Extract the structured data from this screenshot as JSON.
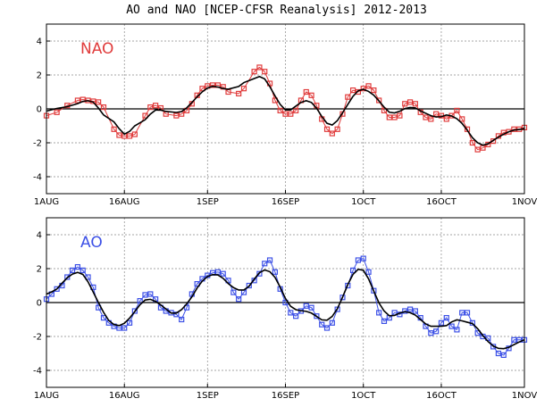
{
  "title": "AO and NAO [NCEP-CFSR Reanalysis] 2012-2013",
  "chart_data": [
    {
      "type": "line",
      "panel_label": "NAO",
      "color": "#e03c3c",
      "ylim": [
        -5,
        5
      ],
      "yticks": [
        -4,
        -2,
        0,
        2,
        4
      ],
      "grid": true,
      "x_tick_labels": [
        "1AUG",
        "16AUG",
        "1SEP",
        "16SEP",
        "1OCT",
        "16OCT",
        "1NOV"
      ],
      "x_tick_days": [
        0,
        15,
        31,
        46,
        61,
        76,
        92
      ],
      "x_range_days": [
        0,
        92
      ],
      "series": [
        {
          "x_days": [
            0,
            2,
            4,
            6,
            7,
            8,
            9,
            10,
            11,
            13,
            14,
            15,
            16,
            17,
            19,
            20,
            21,
            22,
            23,
            25,
            26,
            27,
            28,
            29,
            30,
            31,
            32,
            33,
            34,
            35,
            37,
            38,
            40,
            41,
            42,
            43,
            44,
            45,
            46,
            47,
            48,
            49,
            50,
            51,
            52,
            53,
            54,
            55,
            56,
            57,
            58,
            59,
            60,
            61,
            62,
            63,
            64,
            65,
            66,
            67,
            68,
            69,
            70,
            71,
            72,
            73,
            74,
            75,
            76,
            77,
            78,
            79,
            80,
            81,
            82,
            83,
            84,
            85,
            86,
            87,
            88,
            89,
            90,
            91,
            92
          ],
          "values": [
            -0.4,
            -0.2,
            0.2,
            0.5,
            0.55,
            0.5,
            0.45,
            0.4,
            0.1,
            -1.2,
            -1.55,
            -1.6,
            -1.6,
            -1.5,
            -0.4,
            0.1,
            0.2,
            0.05,
            -0.3,
            -0.4,
            -0.3,
            -0.1,
            0.3,
            0.8,
            1.2,
            1.35,
            1.4,
            1.4,
            1.3,
            1.0,
            0.9,
            1.2,
            2.2,
            2.45,
            2.2,
            1.5,
            0.5,
            -0.1,
            -0.3,
            -0.3,
            -0.1,
            0.5,
            1.0,
            0.8,
            0.2,
            -0.6,
            -1.2,
            -1.45,
            -1.2,
            -0.3,
            0.7,
            1.1,
            1.0,
            1.2,
            1.35,
            1.1,
            0.5,
            -0.1,
            -0.5,
            -0.5,
            -0.4,
            0.3,
            0.4,
            0.3,
            -0.2,
            -0.5,
            -0.6,
            -0.3,
            -0.4,
            -0.6,
            -0.4,
            -0.1,
            -0.6,
            -1.2,
            -2.0,
            -2.4,
            -2.3,
            -2.1,
            -1.9,
            -1.6,
            -1.4,
            -1.35,
            -1.2,
            -1.2,
            -1.1
          ]
        }
      ]
    },
    {
      "type": "line",
      "panel_label": "AO",
      "color": "#3c50e6",
      "ylim": [
        -5,
        5
      ],
      "yticks": [
        -4,
        -2,
        0,
        2,
        4
      ],
      "grid": true,
      "x_tick_labels": [
        "1AUG",
        "16AUG",
        "1SEP",
        "16SEP",
        "1OCT",
        "16OCT",
        "1NOV"
      ],
      "x_tick_days": [
        0,
        15,
        31,
        46,
        61,
        76,
        92
      ],
      "x_range_days": [
        0,
        92
      ],
      "series": [
        {
          "x_days": [
            0,
            1,
            2,
            3,
            4,
            5,
            6,
            7,
            8,
            9,
            10,
            11,
            12,
            13,
            14,
            15,
            16,
            17,
            18,
            19,
            20,
            21,
            22,
            23,
            24,
            25,
            26,
            27,
            28,
            29,
            30,
            31,
            32,
            33,
            34,
            35,
            36,
            37,
            38,
            39,
            40,
            41,
            42,
            43,
            44,
            45,
            46,
            47,
            48,
            49,
            50,
            51,
            52,
            53,
            54,
            55,
            56,
            57,
            58,
            59,
            60,
            61,
            62,
            63,
            64,
            65,
            66,
            67,
            68,
            69,
            70,
            71,
            72,
            73,
            74,
            75,
            76,
            77,
            78,
            79,
            80,
            81,
            82,
            83,
            84,
            85,
            86,
            87,
            88,
            89,
            90,
            91,
            92
          ],
          "values": [
            0.2,
            0.5,
            0.8,
            1.0,
            1.5,
            1.9,
            2.1,
            1.9,
            1.5,
            0.9,
            -0.3,
            -0.9,
            -1.2,
            -1.4,
            -1.5,
            -1.5,
            -1.2,
            -0.5,
            0.1,
            0.45,
            0.5,
            0.2,
            -0.3,
            -0.5,
            -0.6,
            -0.7,
            -1.0,
            -0.3,
            0.5,
            1.1,
            1.4,
            1.6,
            1.75,
            1.8,
            1.7,
            1.3,
            0.6,
            0.2,
            0.6,
            1.0,
            1.3,
            1.7,
            2.3,
            2.5,
            1.8,
            0.8,
            0.0,
            -0.6,
            -0.8,
            -0.5,
            -0.2,
            -0.3,
            -0.8,
            -1.3,
            -1.5,
            -1.2,
            -0.4,
            0.3,
            1.0,
            1.9,
            2.5,
            2.6,
            1.8,
            0.7,
            -0.6,
            -1.1,
            -0.9,
            -0.6,
            -0.7,
            -0.5,
            -0.4,
            -0.5,
            -0.9,
            -1.4,
            -1.8,
            -1.7,
            -1.2,
            -0.9,
            -1.4,
            -1.6,
            -0.6,
            -0.6,
            -1.2,
            -1.8,
            -2.0,
            -2.1,
            -2.6,
            -3.0,
            -3.1,
            -2.7,
            -2.2,
            -2.2,
            -2.2
          ]
        }
      ]
    }
  ]
}
